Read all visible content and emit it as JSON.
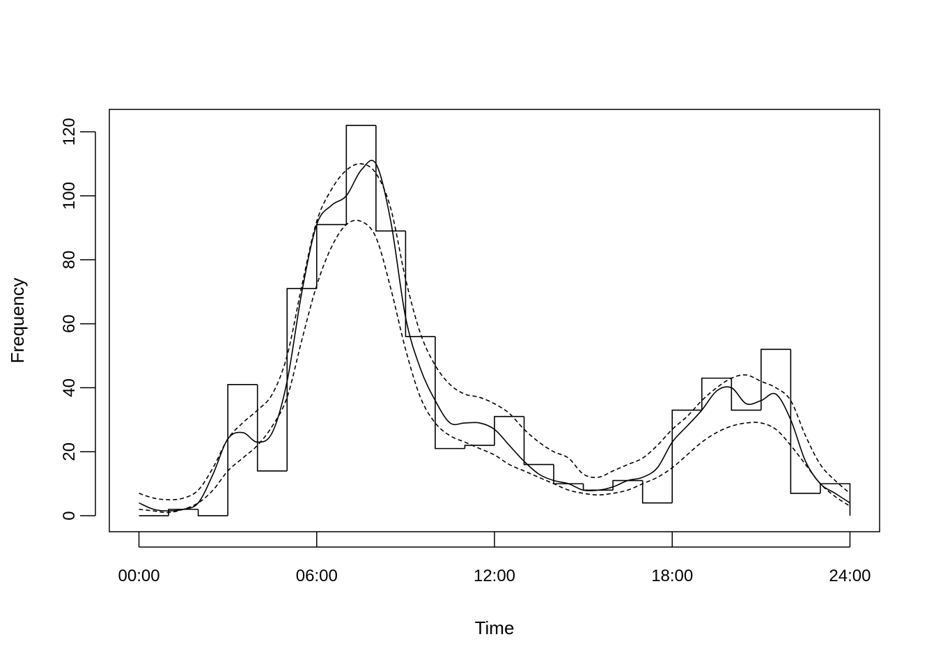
{
  "chart_data": {
    "type": "line",
    "title": "",
    "xlabel": "Time",
    "ylabel": "Frequency",
    "xlim": [
      -1,
      25
    ],
    "ylim": [
      -5,
      127
    ],
    "x_ticks": [
      {
        "value": 0,
        "label": "00:00"
      },
      {
        "value": 6,
        "label": "06:00"
      },
      {
        "value": 12,
        "label": "12:00"
      },
      {
        "value": 18,
        "label": "18:00"
      },
      {
        "value": 24,
        "label": "24:00"
      }
    ],
    "y_ticks": [
      {
        "value": 0,
        "label": "0"
      },
      {
        "value": 20,
        "label": "20"
      },
      {
        "value": 40,
        "label": "40"
      },
      {
        "value": 60,
        "label": "60"
      },
      {
        "value": 80,
        "label": "80"
      },
      {
        "value": 100,
        "label": "100"
      },
      {
        "value": 120,
        "label": "120"
      }
    ],
    "grid": false,
    "legend": "none",
    "step_histogram": {
      "bin_starts": [
        0,
        1,
        2,
        3,
        4,
        5,
        6,
        7,
        8,
        9,
        10,
        11,
        12,
        13,
        14,
        15,
        16,
        17,
        18,
        19,
        20,
        21,
        22,
        23
      ],
      "bin_width": 1,
      "values": [
        0,
        2,
        0,
        41,
        14,
        71,
        91,
        122,
        89,
        56,
        21,
        22,
        31,
        16,
        10,
        8,
        11,
        4,
        33,
        43,
        33,
        52,
        7,
        10
      ]
    },
    "series": [
      {
        "style": "solid",
        "x": [
          0,
          0.5,
          1,
          1.5,
          2,
          2.5,
          3,
          3.5,
          4,
          4.5,
          5,
          5.5,
          6,
          6.5,
          7,
          7.5,
          8,
          8.5,
          9,
          9.5,
          10,
          10.5,
          11,
          11.5,
          12,
          12.5,
          13,
          13.5,
          14,
          14.5,
          15,
          15.5,
          16,
          16.5,
          17,
          17.5,
          18,
          18.5,
          19,
          19.5,
          20,
          20.5,
          21,
          21.5,
          22,
          22.5,
          23,
          23.5,
          24
        ],
        "y": [
          4,
          2,
          1.5,
          2,
          4,
          13,
          24,
          26,
          23,
          26,
          42,
          70,
          91,
          97,
          100,
          108,
          110,
          92,
          62,
          46,
          36,
          29,
          29,
          29,
          27,
          22,
          17,
          13,
          11,
          10,
          8,
          8,
          9,
          11,
          12,
          15,
          23,
          28,
          33,
          39,
          40,
          35,
          36,
          38,
          30,
          17,
          10,
          7,
          4
        ]
      },
      {
        "style": "dashed",
        "x": [
          0,
          0.5,
          1,
          1.5,
          2,
          2.5,
          3,
          3.5,
          4,
          4.5,
          5,
          5.5,
          6,
          6.5,
          7,
          7.5,
          8,
          8.5,
          9,
          9.5,
          10,
          10.5,
          11,
          11.5,
          12,
          12.5,
          13,
          13.5,
          14,
          14.5,
          15,
          15.5,
          16,
          16.5,
          17,
          17.5,
          18,
          18.5,
          19,
          19.5,
          20,
          20.5,
          21,
          21.5,
          22,
          22.5,
          23,
          23.5,
          24
        ],
        "y": [
          7,
          5.5,
          5,
          5.5,
          8,
          15,
          24,
          29,
          33,
          38,
          50,
          72,
          92,
          102,
          108,
          110,
          107,
          96,
          74,
          57,
          47,
          41,
          38,
          37,
          35,
          32,
          27,
          23,
          20,
          18,
          13,
          12,
          14,
          16,
          18,
          22,
          27,
          31,
          36,
          40,
          43,
          44,
          42,
          40,
          36,
          25,
          16,
          11,
          7
        ]
      },
      {
        "style": "dashed",
        "x": [
          0,
          0.5,
          1,
          1.5,
          2,
          2.5,
          3,
          3.5,
          4,
          4.5,
          5,
          5.5,
          6,
          6.5,
          7,
          7.5,
          8,
          8.5,
          9,
          9.5,
          10,
          10.5,
          11,
          11.5,
          12,
          12.5,
          13,
          13.5,
          14,
          14.5,
          15,
          15.5,
          16,
          16.5,
          17,
          17.5,
          18,
          18.5,
          19,
          19.5,
          20,
          20.5,
          21,
          21.5,
          22,
          22.5,
          23,
          23.5,
          24
        ],
        "y": [
          2,
          1.5,
          1,
          2,
          4,
          8,
          14,
          18,
          22,
          28,
          37,
          55,
          72,
          84,
          91,
          92,
          87,
          71,
          52,
          37,
          29,
          25,
          23,
          21,
          19,
          16,
          14,
          12,
          10,
          8,
          7,
          6.5,
          7,
          8,
          10,
          12,
          15,
          19,
          23,
          26,
          28,
          29,
          29,
          27,
          22,
          16,
          10,
          6,
          3
        ]
      }
    ]
  }
}
